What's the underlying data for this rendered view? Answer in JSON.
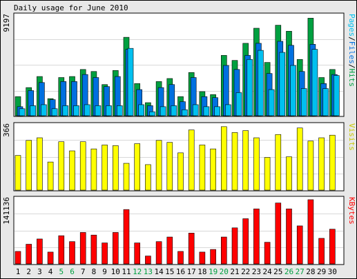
{
  "title": "Daily usage for June 2010",
  "colors": {
    "background": "#e8e8e8",
    "plot_background": "#ffffff",
    "grid": "#d8d8d8",
    "frame": "#000000",
    "hits": "#00a040",
    "files": "#0070e0",
    "pages": "#00c0f0",
    "visits": "#ffff00",
    "kbytes": "#ff0000",
    "weekday_label": "#000000",
    "weekend_label": "#00a040"
  },
  "chart_data": [
    {
      "type": "bar",
      "panel": "pages-files-hits",
      "y_max_label": "9197",
      "legend": {
        "pages": "Pages",
        "sep1": "/",
        "files": "Files",
        "sep2": "/",
        "hits": "Hits"
      },
      "categories": [
        "1",
        "2",
        "3",
        "4",
        "5",
        "6",
        "7",
        "8",
        "9",
        "10",
        "11",
        "12",
        "13",
        "14",
        "15",
        "16",
        "17",
        "18",
        "19",
        "20",
        "21",
        "22",
        "23",
        "24",
        "25",
        "26",
        "27",
        "28",
        "29",
        "30"
      ],
      "series": [
        {
          "name": "Hits",
          "key": "hits",
          "values": [
            0.19,
            0.28,
            0.39,
            0.17,
            0.38,
            0.39,
            0.46,
            0.44,
            0.31,
            0.45,
            0.78,
            0.32,
            0.13,
            0.34,
            0.37,
            0.19,
            0.43,
            0.24,
            0.21,
            0.6,
            0.55,
            0.72,
            0.87,
            0.53,
            0.9,
            0.84,
            0.56,
            0.97,
            0.38,
            0.46
          ]
        },
        {
          "name": "Files",
          "key": "files",
          "values": [
            0.09,
            0.25,
            0.33,
            0.16,
            0.34,
            0.34,
            0.41,
            0.38,
            0.29,
            0.39,
            0.66,
            0.26,
            0.1,
            0.28,
            0.31,
            0.14,
            0.38,
            0.19,
            0.18,
            0.5,
            0.46,
            0.6,
            0.72,
            0.42,
            0.74,
            0.7,
            0.44,
            0.71,
            0.32,
            0.41
          ]
        },
        {
          "name": "Pages",
          "key": "pages",
          "values": [
            0.07,
            0.1,
            0.11,
            0.07,
            0.1,
            0.1,
            0.11,
            0.1,
            0.1,
            0.1,
            0.67,
            0.11,
            0.04,
            0.09,
            0.1,
            0.06,
            0.11,
            0.09,
            0.09,
            0.11,
            0.23,
            0.56,
            0.65,
            0.26,
            0.63,
            0.5,
            0.27,
            0.66,
            0.27,
            0.4
          ]
        }
      ]
    },
    {
      "type": "bar",
      "panel": "visits",
      "y_max_label": "366",
      "legend": {
        "visits": "Visits"
      },
      "categories": [
        "1",
        "2",
        "3",
        "4",
        "5",
        "6",
        "7",
        "8",
        "9",
        "10",
        "11",
        "12",
        "13",
        "14",
        "15",
        "16",
        "17",
        "18",
        "19",
        "20",
        "21",
        "22",
        "23",
        "24",
        "25",
        "26",
        "27",
        "28",
        "29",
        "30"
      ],
      "series": [
        {
          "name": "Visits",
          "key": "visits",
          "values": [
            0.53,
            0.76,
            0.8,
            0.43,
            0.74,
            0.6,
            0.74,
            0.63,
            0.69,
            0.68,
            0.41,
            0.71,
            0.39,
            0.76,
            0.73,
            0.57,
            0.92,
            0.69,
            0.63,
            0.97,
            0.88,
            0.91,
            0.8,
            0.5,
            0.85,
            0.51,
            0.95,
            0.75,
            0.8,
            0.84
          ]
        }
      ]
    },
    {
      "type": "bar",
      "panel": "kbytes",
      "y_max_label": "141136",
      "legend": {
        "kbytes": "KBytes"
      },
      "categories": [
        "1",
        "2",
        "3",
        "4",
        "5",
        "6",
        "7",
        "8",
        "9",
        "10",
        "11",
        "12",
        "13",
        "14",
        "15",
        "16",
        "17",
        "18",
        "19",
        "20",
        "21",
        "22",
        "23",
        "24",
        "25",
        "26",
        "27",
        "28",
        "29",
        "30"
      ],
      "series": [
        {
          "name": "KBytes",
          "key": "kbytes",
          "values": [
            0.19,
            0.3,
            0.38,
            0.18,
            0.43,
            0.34,
            0.48,
            0.44,
            0.32,
            0.48,
            0.83,
            0.32,
            0.12,
            0.34,
            0.41,
            0.19,
            0.47,
            0.18,
            0.22,
            0.41,
            0.55,
            0.69,
            0.84,
            0.33,
            0.93,
            0.84,
            0.58,
            0.98,
            0.39,
            0.53
          ]
        }
      ]
    }
  ],
  "x_axis": {
    "labels": [
      "1",
      "2",
      "3",
      "4",
      "5",
      "6",
      "7",
      "8",
      "9",
      "10",
      "11",
      "12",
      "13",
      "14",
      "15",
      "16",
      "17",
      "18",
      "19",
      "20",
      "21",
      "22",
      "23",
      "24",
      "25",
      "26",
      "27",
      "28",
      "29",
      "30"
    ],
    "weekend": [
      false,
      false,
      false,
      false,
      true,
      true,
      false,
      false,
      false,
      false,
      false,
      true,
      true,
      false,
      false,
      false,
      false,
      false,
      true,
      true,
      false,
      false,
      false,
      false,
      false,
      true,
      true,
      false,
      false,
      false
    ]
  }
}
